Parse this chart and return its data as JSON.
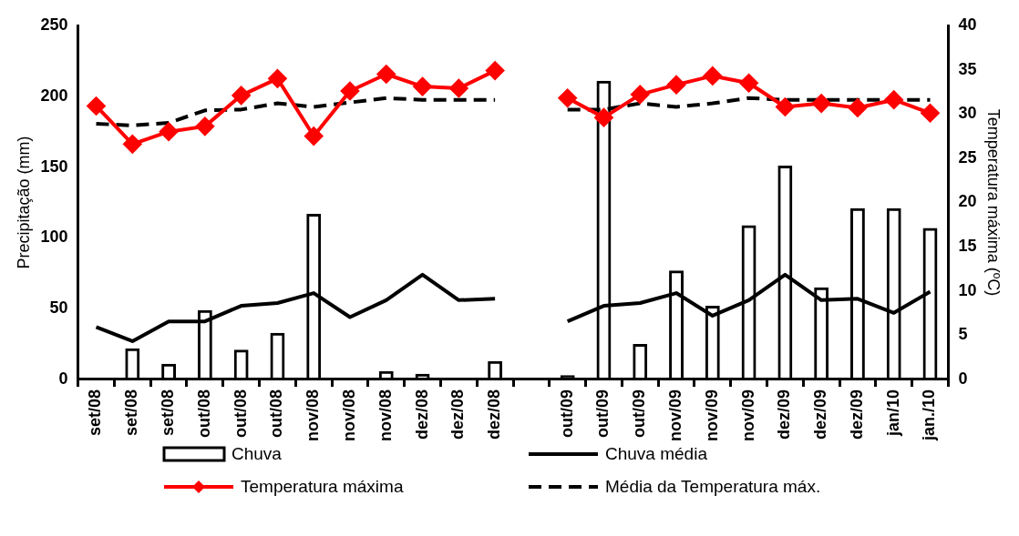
{
  "chart_data": {
    "type": "bar",
    "xlabel": null,
    "ylabel": "Precipitação (mm)",
    "y2label": "Temperatura máxima (ºC)",
    "categories": [
      "set/08",
      "set/08",
      "set/08",
      "out/08",
      "out/08",
      "out/08",
      "nov/08",
      "nov/08",
      "nov/08",
      "dez/08",
      "dez/08",
      "dez/08",
      null,
      "out/09",
      "out/09",
      "out/09",
      "nov/09",
      "nov/09",
      "nov/09",
      "dez/09",
      "dez/09",
      "dez/09",
      "jan/10",
      "jan./10"
    ],
    "ylim": [
      0,
      250
    ],
    "yticks": [
      0,
      50,
      100,
      150,
      200,
      250
    ],
    "y2lim": [
      0,
      40
    ],
    "y2ticks": [
      0,
      5,
      10,
      15,
      20,
      25,
      30,
      35,
      40
    ],
    "legend": "bottom",
    "grid": false,
    "series": [
      {
        "name": "Chuva",
        "color": "#000000",
        "values": [
          1,
          22,
          11,
          49,
          21,
          33,
          117,
          0.5,
          6,
          4,
          0.5,
          13,
          null,
          3,
          211,
          25,
          77,
          52,
          109,
          151,
          65,
          121,
          121,
          107
        ]
      },
      {
        "name": "Chuva média",
        "type": "line",
        "color": "#000000",
        "marker": "none",
        "line_style": "solid",
        "values": [
          37,
          27,
          41,
          41,
          52,
          54,
          61,
          44,
          56,
          74,
          56,
          57,
          null,
          41,
          52,
          54,
          61,
          45,
          56,
          74,
          56,
          57,
          47,
          62
        ]
      },
      {
        "name": "Temperatura máxima",
        "type": "line",
        "axis": "y2",
        "color": "#ff0000",
        "marker": "diamond",
        "line_style": "solid",
        "values": [
          30.9,
          26.6,
          28.0,
          28.6,
          32.1,
          34.0,
          27.5,
          32.6,
          34.5,
          33.1,
          32.9,
          34.9,
          null,
          31.8,
          29.6,
          32.2,
          33.3,
          34.3,
          33.5,
          30.8,
          31.2,
          30.7,
          31.6,
          30.1
        ]
      },
      {
        "name": "Média da Temperatura máx.",
        "type": "line",
        "axis": "y2",
        "color": "#000000",
        "marker": "none",
        "line_style": "dashed",
        "values": [
          28.9,
          28.7,
          29.0,
          30.4,
          30.5,
          31.2,
          30.8,
          31.3,
          31.8,
          31.6,
          31.6,
          31.6,
          null,
          30.5,
          30.5,
          31.2,
          30.8,
          31.2,
          31.8,
          31.6,
          31.6,
          31.6,
          31.6,
          31.6
        ]
      }
    ]
  }
}
